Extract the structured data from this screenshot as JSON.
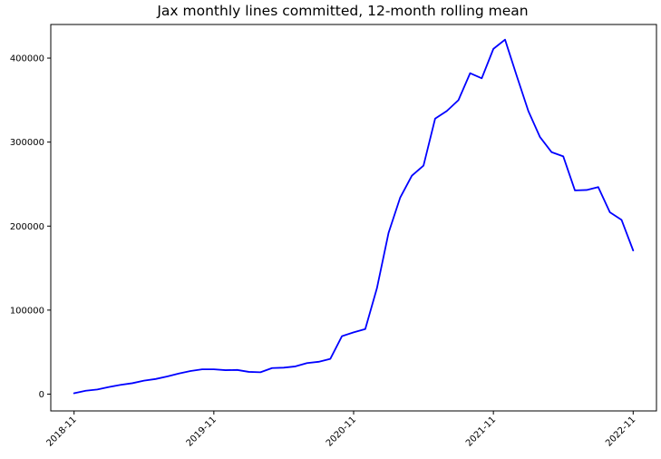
{
  "chart_data": {
    "type": "line",
    "title": "Jax monthly lines committed, 12-month rolling mean",
    "xlabel": "",
    "ylabel": "",
    "grid": false,
    "line_color": "#0000ff",
    "x_ticks": [
      "2018-11",
      "2019-11",
      "2020-11",
      "2021-11",
      "2022-11"
    ],
    "y_ticks": [
      "0",
      "100000",
      "200000",
      "300000",
      "400000"
    ],
    "ylim": [
      -20000,
      440000
    ],
    "xlim_months": [
      "2018-09",
      "2023-01"
    ],
    "series": [
      {
        "x": [
          "2018-11",
          "2018-12",
          "2019-01",
          "2019-02",
          "2019-03",
          "2019-04",
          "2019-05",
          "2019-06",
          "2019-07",
          "2019-08",
          "2019-09",
          "2019-10",
          "2019-11",
          "2019-12",
          "2020-01",
          "2020-02",
          "2020-03",
          "2020-04",
          "2020-05",
          "2020-06",
          "2020-07",
          "2020-08",
          "2020-09",
          "2020-10",
          "2020-11",
          "2020-12",
          "2021-01",
          "2021-02",
          "2021-03",
          "2021-04",
          "2021-05",
          "2021-06",
          "2021-07",
          "2021-08",
          "2021-09",
          "2021-10",
          "2021-11",
          "2021-12",
          "2022-01",
          "2022-02",
          "2022-03",
          "2022-04",
          "2022-05",
          "2022-06",
          "2022-07",
          "2022-08",
          "2022-09",
          "2022-10",
          "2022-11"
        ],
        "values": [
          1000,
          4000,
          5500,
          8500,
          11000,
          13000,
          16000,
          18000,
          21000,
          24500,
          27500,
          29500,
          29500,
          28500,
          28800,
          26500,
          26000,
          31000,
          31500,
          33000,
          37000,
          38500,
          42000,
          69000,
          73500,
          77500,
          126000,
          192000,
          234000,
          260000,
          272000,
          328000,
          337000,
          350000,
          382000,
          376000,
          411000,
          422000,
          379000,
          337000,
          306000,
          288000,
          283000,
          242500,
          243000,
          246500,
          216500,
          207500,
          171000
        ]
      }
    ]
  }
}
